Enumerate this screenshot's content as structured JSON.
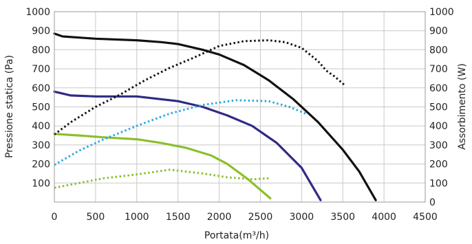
{
  "chart_data": {
    "type": "line",
    "title": "",
    "xlabel": "Portata(m³/h)",
    "ylabel_left": "Pressione statica (Pa)",
    "ylabel_right": "Assorbimento (W)",
    "xlim": [
      0,
      4500
    ],
    "ylim_left": [
      0,
      1000
    ],
    "ylim_right": [
      0,
      1000
    ],
    "grid": true,
    "legend": "none",
    "x_ticks": [
      "0",
      "500",
      "1000",
      "1500",
      "2000",
      "2500",
      "3000",
      "3500",
      "4000",
      "4500"
    ],
    "y_left_ticks": [
      {
        "value": 100,
        "label": "100"
      },
      {
        "value": 200,
        "label": "200"
      },
      {
        "value": 300,
        "label": "300"
      },
      {
        "value": 400,
        "label": "400"
      },
      {
        "value": 500,
        "label": "500"
      },
      {
        "value": 600,
        "label": "600"
      },
      {
        "value": 700,
        "label": "700"
      },
      {
        "value": 800,
        "label": "800"
      },
      {
        "value": 900,
        "label": "900"
      },
      {
        "value": 1000,
        "label": "1000"
      }
    ],
    "y_right_ticks": [
      {
        "value": 0,
        "label": "0"
      },
      {
        "value": 100,
        "label": "100"
      },
      {
        "value": 200,
        "label": "200"
      },
      {
        "value": 300,
        "label": "300"
      },
      {
        "value": 400,
        "label": "400"
      },
      {
        "value": 500,
        "label": "500"
      },
      {
        "value": 600,
        "label": "600"
      },
      {
        "value": 700,
        "label": "700"
      },
      {
        "value": 800,
        "label": "800"
      },
      {
        "value": 900,
        "label": "900"
      },
      {
        "value": 1000,
        "label": "1000"
      }
    ],
    "series": [
      {
        "color": "#111111",
        "style": "solid",
        "axis": "left",
        "points": [
          [
            0,
            885
          ],
          [
            100,
            870
          ],
          [
            500,
            858
          ],
          [
            1000,
            850
          ],
          [
            1300,
            840
          ],
          [
            1500,
            830
          ],
          [
            1800,
            800
          ],
          [
            2000,
            775
          ],
          [
            2300,
            720
          ],
          [
            2600,
            640
          ],
          [
            2900,
            540
          ],
          [
            3200,
            420
          ],
          [
            3500,
            275
          ],
          [
            3700,
            160
          ],
          [
            3900,
            10
          ]
        ]
      },
      {
        "color": "#2e2a86",
        "style": "solid",
        "axis": "left",
        "points": [
          [
            0,
            580
          ],
          [
            200,
            560
          ],
          [
            500,
            555
          ],
          [
            1000,
            555
          ],
          [
            1500,
            530
          ],
          [
            1800,
            500
          ],
          [
            2100,
            455
          ],
          [
            2400,
            400
          ],
          [
            2700,
            310
          ],
          [
            3000,
            180
          ],
          [
            3230,
            10
          ]
        ]
      },
      {
        "color": "#8bbf2b",
        "style": "solid",
        "axis": "left",
        "points": [
          [
            0,
            358
          ],
          [
            300,
            350
          ],
          [
            600,
            340
          ],
          [
            1000,
            330
          ],
          [
            1300,
            310
          ],
          [
            1600,
            285
          ],
          [
            1900,
            245
          ],
          [
            2100,
            200
          ],
          [
            2350,
            120
          ],
          [
            2620,
            20
          ]
        ]
      },
      {
        "color": "#111111",
        "style": "dotted",
        "axis": "right",
        "points": [
          [
            0,
            355
          ],
          [
            200,
            420
          ],
          [
            500,
            500
          ],
          [
            800,
            565
          ],
          [
            1100,
            640
          ],
          [
            1400,
            705
          ],
          [
            1700,
            760
          ],
          [
            2000,
            820
          ],
          [
            2300,
            845
          ],
          [
            2600,
            850
          ],
          [
            2800,
            840
          ],
          [
            3000,
            810
          ],
          [
            3200,
            740
          ],
          [
            3300,
            690
          ],
          [
            3400,
            660
          ],
          [
            3520,
            615
          ]
        ]
      },
      {
        "color": "#29a8e0",
        "style": "dotted",
        "axis": "right",
        "points": [
          [
            0,
            195
          ],
          [
            300,
            270
          ],
          [
            600,
            330
          ],
          [
            1000,
            400
          ],
          [
            1400,
            465
          ],
          [
            1800,
            510
          ],
          [
            2200,
            535
          ],
          [
            2600,
            530
          ],
          [
            2850,
            500
          ],
          [
            3050,
            465
          ]
        ]
      },
      {
        "color": "#8bbf2b",
        "style": "dotted",
        "axis": "right",
        "points": [
          [
            0,
            75
          ],
          [
            300,
            100
          ],
          [
            600,
            125
          ],
          [
            1000,
            145
          ],
          [
            1400,
            170
          ],
          [
            1800,
            150
          ],
          [
            2100,
            130
          ],
          [
            2400,
            120
          ],
          [
            2600,
            125
          ]
        ]
      }
    ]
  }
}
